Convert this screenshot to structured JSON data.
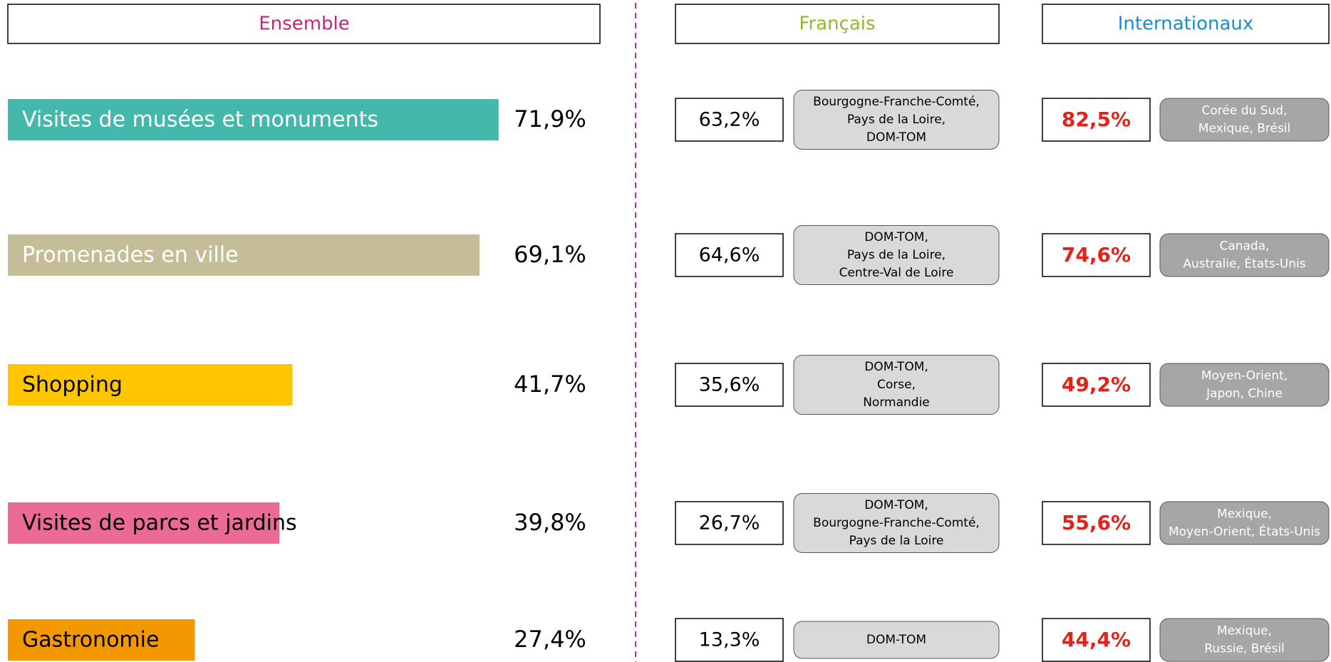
{
  "chart_data": {
    "type": "bar",
    "title": "Ensemble",
    "categories": [
      "Visites de musées et monuments",
      "Promenades en ville",
      "Shopping",
      "Visites de parcs et jardins",
      "Gastronomie"
    ],
    "values": [
      71.9,
      69.1,
      41.7,
      39.8,
      27.4
    ],
    "value_labels": [
      "71,9%",
      "69,1%",
      "41,7%",
      "39,8%",
      "27,4%"
    ],
    "colors": [
      "#45b8ac",
      "#c4bd97",
      "#ffc600",
      "#eb6a96",
      "#f39800"
    ],
    "label_colors": [
      "#ffffff",
      "#ffffff",
      "#000000",
      "#000000",
      "#000000"
    ]
  },
  "groups": [
    {
      "title": "Français",
      "color": "#8dba28",
      "value_color": "#000000",
      "values": [
        63.2,
        64.6,
        35.6,
        26.7,
        13.3
      ],
      "value_labels": [
        "63,2%",
        "64,6%",
        "35,6%",
        "26,7%",
        "13,3%"
      ],
      "regions": [
        [
          "Bourgogne-Franche-Comté,",
          "Pays de la Loire,",
          "DOM-TOM"
        ],
        [
          "DOM-TOM,",
          "Pays de la Loire,",
          "Centre-Val de Loire"
        ],
        [
          "DOM-TOM,",
          "Corse,",
          "Normandie"
        ],
        [
          "DOM-TOM,",
          "Bourgogne-Franche-Comté,",
          "Pays de la Loire"
        ],
        [
          "DOM-TOM"
        ]
      ]
    },
    {
      "title": "Internationaux",
      "color": "#1a8ccc",
      "value_color": "#e2231a",
      "values": [
        82.5,
        74.6,
        49.2,
        55.6,
        44.4
      ],
      "value_labels": [
        "82,5%",
        "74,6%",
        "49,2%",
        "55,6%",
        "44,4%"
      ],
      "regions": [
        [
          "Corée du Sud,",
          "Mexique, Brésil"
        ],
        [
          "Canada,",
          "Australie, États-Unis"
        ],
        [
          "Moyen-Orient,",
          "Japon, Chine"
        ],
        [
          "Mexique,",
          "Moyen-Orient, États-Unis"
        ],
        [
          "Mexique,",
          "Russie, Brésil"
        ]
      ]
    }
  ]
}
